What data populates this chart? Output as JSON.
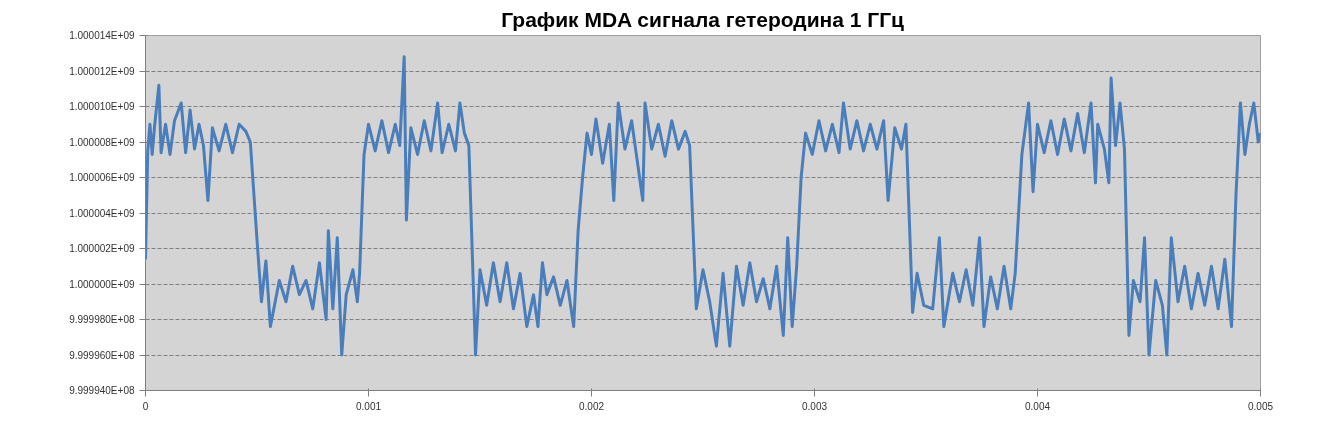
{
  "chart_data": {
    "type": "line",
    "title": "График MDA сигнала гетеродина 1 ГГц",
    "xlim": [
      0,
      0.005
    ],
    "xticks": [
      0,
      0.001,
      0.002,
      0.003,
      0.004,
      0.005
    ],
    "ylim": [
      999994000,
      1000014000
    ],
    "yticks": [
      {
        "value": 1000014000,
        "label": "1.000014E+09"
      },
      {
        "value": 1000012000,
        "label": "1.000012E+09"
      },
      {
        "value": 1000010000,
        "label": "1.000010E+09"
      },
      {
        "value": 1000008000,
        "label": "1.000008E+09"
      },
      {
        "value": 1000006000,
        "label": "1.000006E+09"
      },
      {
        "value": 1000004000,
        "label": "1.000004E+09"
      },
      {
        "value": 1000002000,
        "label": "1.000002E+09"
      },
      {
        "value": 1000000000,
        "label": "1.000000E+09"
      },
      {
        "value": 999998000,
        "label": "9.999980E+08"
      },
      {
        "value": 999996000,
        "label": "9.999960E+08"
      },
      {
        "value": 999994000,
        "label": "9.999940E+08"
      }
    ],
    "grid": "y",
    "marker": "none",
    "line_style": "solid",
    "series": [
      {
        "color": "#4a7ebb",
        "x": [
          0,
          1e-05,
          2e-05,
          3e-05,
          4e-05,
          6e-05,
          7e-05,
          9e-05,
          0.00011,
          0.00013,
          0.00016,
          0.00018,
          0.0002,
          0.00022,
          0.00024,
          0.00026,
          0.00028,
          0.0003,
          0.00033,
          0.00036,
          0.00039,
          0.00042,
          0.00045,
          0.00047,
          0.0005,
          0.00052,
          0.00054,
          0.00056,
          0.0006,
          0.00063,
          0.00066,
          0.00069,
          0.00072,
          0.00075,
          0.00078,
          0.00081,
          0.00082,
          0.00084,
          0.00086,
          0.00088,
          0.0009,
          0.00093,
          0.00095,
          0.00096,
          0.00098,
          0.001,
          0.00103,
          0.00106,
          0.00109,
          0.00112,
          0.00114,
          0.00116,
          0.00117,
          0.00119,
          0.00122,
          0.00125,
          0.00128,
          0.00131,
          0.00133,
          0.00136,
          0.00139,
          0.00141,
          0.00143,
          0.00145,
          0.00148,
          0.0015,
          0.00153,
          0.00156,
          0.00159,
          0.00162,
          0.00165,
          0.00168,
          0.00171,
          0.00174,
          0.00176,
          0.00178,
          0.0018,
          0.00183,
          0.00186,
          0.00189,
          0.00192,
          0.00194,
          0.00196,
          0.00198,
          0.002,
          0.00202,
          0.00205,
          0.00208,
          0.0021,
          0.00212,
          0.00215,
          0.00218,
          0.0022,
          0.00223,
          0.00224,
          0.00227,
          0.0023,
          0.00233,
          0.00236,
          0.00239,
          0.00242,
          0.00244,
          0.00247,
          0.0025,
          0.00253,
          0.00256,
          0.00259,
          0.00262,
          0.00265,
          0.00268,
          0.00271,
          0.00274,
          0.00277,
          0.0028,
          0.00283,
          0.00286,
          0.00288,
          0.0029,
          0.00292,
          0.00294,
          0.00296,
          0.00299,
          0.00302,
          0.00305,
          0.00308,
          0.00311,
          0.00313,
          0.00316,
          0.00319,
          0.00322,
          0.00325,
          0.00328,
          0.00331,
          0.00333,
          0.00336,
          0.00339,
          0.00341,
          0.00344,
          0.00346,
          0.00349,
          0.00353,
          0.00356,
          0.00358,
          0.00362,
          0.00365,
          0.00368,
          0.00371,
          0.00374,
          0.00376,
          0.00379,
          0.00382,
          0.00385,
          0.00388,
          0.0039,
          0.00393,
          0.00396,
          0.00398,
          0.004,
          0.00403,
          0.00406,
          0.00409,
          0.00412,
          0.00415,
          0.00418,
          0.00421,
          0.00424,
          0.00426,
          0.00427,
          0.0043,
          0.00432,
          0.00433,
          0.00435,
          0.00437,
          0.00439,
          0.00441,
          0.00443,
          0.00446,
          0.00448,
          0.0045,
          0.00453,
          0.00456,
          0.00458,
          0.0046,
          0.00463,
          0.00466,
          0.00469,
          0.00472,
          0.00475,
          0.00478,
          0.00481,
          0.00484,
          0.00487,
          0.00489,
          0.00491,
          0.00493,
          0.00495,
          0.00497,
          0.00499,
          0.005
        ],
        "values": [
          1000001400,
          1000007500,
          1000009000,
          1000007300,
          1000008800,
          1000011200,
          1000007400,
          1000009000,
          1000007300,
          1000009200,
          1000010200,
          1000007400,
          1000009800,
          1000007600,
          1000009000,
          1000007800,
          1000004700,
          1000008800,
          1000007500,
          1000009000,
          1000007400,
          1000009000,
          1000008600,
          1000008000,
          1000002500,
          999999000,
          1000001300,
          999997600,
          1000000200,
          999999000,
          1000001000,
          999999400,
          1000000200,
          999998600,
          1000001200,
          999998000,
          1000003000,
          999998600,
          1000002600,
          999996000,
          999999400,
          1000000800,
          999999000,
          1000000600,
          1000007300,
          1000009000,
          1000007500,
          1000009200,
          1000007400,
          1000009000,
          1000007800,
          1000012800,
          1000003600,
          1000008800,
          1000007300,
          1000009200,
          1000007500,
          1000010200,
          1000007400,
          1000009000,
          1000007500,
          1000010200,
          1000008500,
          1000007800,
          999996000,
          1000000800,
          999998800,
          1000001200,
          999999000,
          1000001200,
          999998600,
          1000000600,
          999997600,
          999999400,
          999997600,
          1000001200,
          999999400,
          1000000400,
          999998800,
          1000000200,
          999997600,
          1000003000,
          1000006000,
          1000008500,
          1000007300,
          1000009300,
          1000006800,
          1000009000,
          1000004700,
          1000010200,
          1000007600,
          1000009200,
          1000007400,
          1000004700,
          1000010200,
          1000007600,
          1000009000,
          1000007200,
          1000009200,
          1000007600,
          1000008600,
          1000007800,
          999998600,
          1000000800,
          999999000,
          999996500,
          1000000600,
          999996500,
          1000001000,
          999998800,
          1000001200,
          999999000,
          1000000300,
          999998600,
          1000001000,
          999997100,
          1000002600,
          999997600,
          1000001000,
          1000006000,
          1000008500,
          1000007300,
          1000009200,
          1000007500,
          1000009000,
          1000007400,
          1000010200,
          1000007600,
          1000009200,
          1000007500,
          1000009000,
          1000007600,
          1000009200,
          1000004700,
          1000008800,
          1000007600,
          1000009000,
          999998400,
          1000000600,
          999998800,
          999998600,
          1000002600,
          999997600,
          1000000600,
          999999000,
          1000000800,
          999998800,
          1000002600,
          999997600,
          1000000400,
          999998600,
          1000001000,
          999998600,
          1000000600,
          1000007300,
          1000010200,
          1000005200,
          1000009000,
          1000007400,
          1000009200,
          1000007300,
          1000009300,
          1000007500,
          1000009600,
          1000007400,
          1000010200,
          1000005700,
          1000009000,
          1000007600,
          1000005700,
          1000011600,
          1000007800,
          1000010200,
          1000007600,
          999997100,
          1000000200,
          999999000,
          1000002600,
          999996000,
          1000000200,
          999998800,
          999996000,
          1000002600,
          999999000,
          1000001000,
          999998600,
          1000000600,
          999998800,
          1000001000,
          999998600,
          1000001400,
          999997600,
          1000005000,
          1000010200,
          1000007300,
          1000009000,
          1000010200,
          1000008000,
          1000008500
        ]
      }
    ]
  }
}
